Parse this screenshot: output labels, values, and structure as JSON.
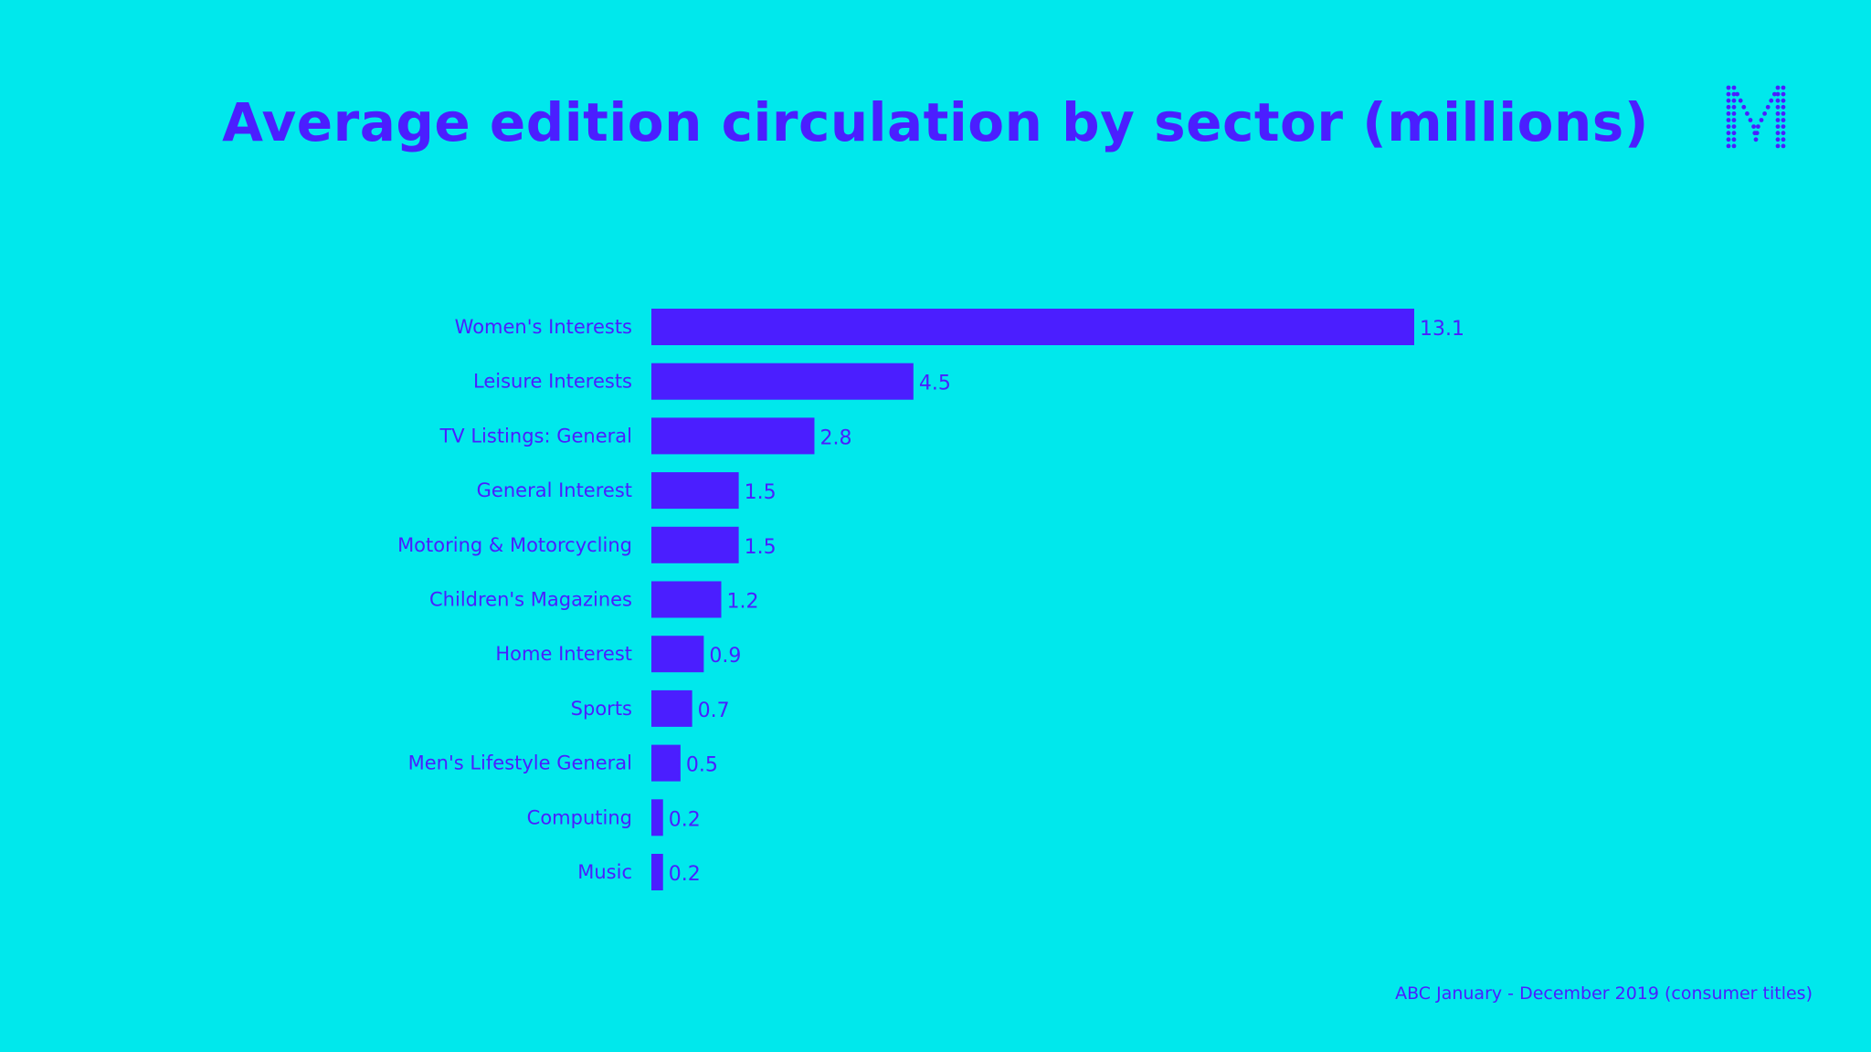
{
  "title": "Average edition circulation by sector (millions)",
  "footer": "ABC January - December 2019 (consumer titles)",
  "logo": "M",
  "colors": {
    "background": "#00E8EC",
    "bar": "#4B1EFF",
    "text": "#4B1EFF"
  },
  "chart_data": {
    "type": "bar",
    "orientation": "horizontal",
    "title": "Average edition circulation by sector (millions)",
    "categories": [
      "Women's Interests",
      "Leisure Interests",
      "TV Listings: General",
      "General Interest",
      "Motoring & Motorcycling",
      "Children's Magazines",
      "Home Interest",
      "Sports",
      "Men's Lifestyle General",
      "Computing",
      "Music"
    ],
    "values": [
      13.1,
      4.5,
      2.8,
      1.5,
      1.5,
      1.2,
      0.9,
      0.7,
      0.5,
      0.2,
      0.2
    ],
    "data_labels": [
      "13.1",
      "4.5",
      "2.8",
      "1.5",
      "1.5",
      "1.2",
      "0.9",
      "0.7",
      "0.5",
      "0.2",
      "0.2"
    ],
    "xlabel": "",
    "ylabel": "",
    "grid": false,
    "legend": "none"
  }
}
